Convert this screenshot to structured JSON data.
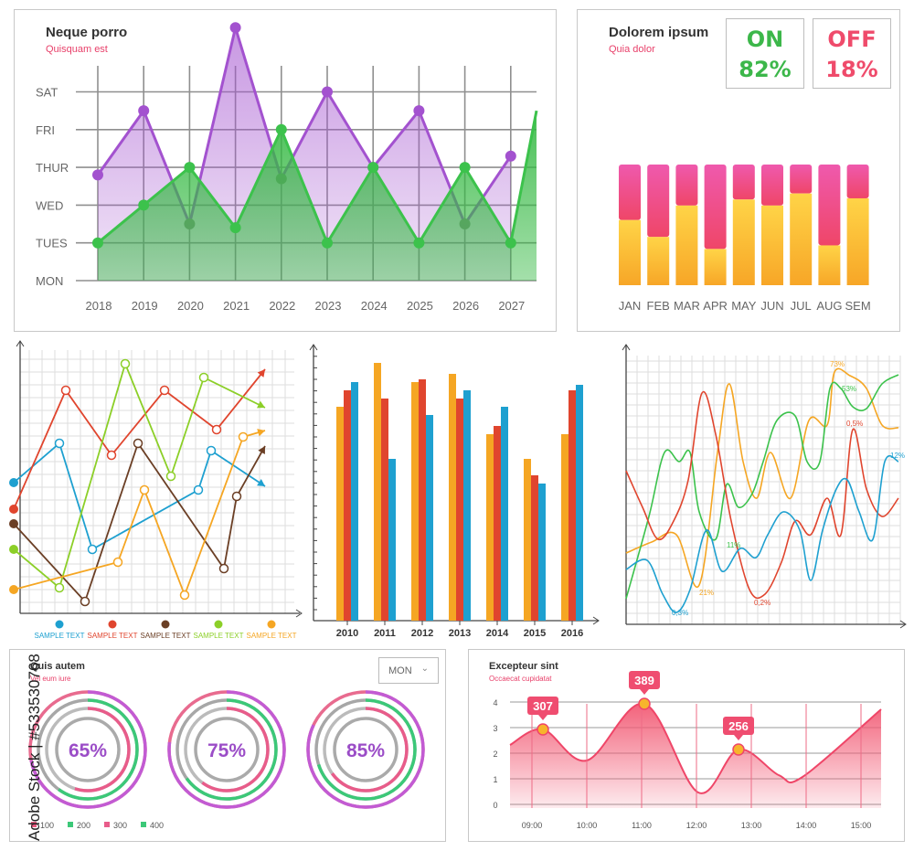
{
  "colors": {
    "purple": "#a352cf",
    "green": "#3cc24c",
    "pink": "#e8406a",
    "orange": "#f5a623",
    "red": "#e0452e",
    "blue": "#1ea0d0",
    "brown": "#6b3f25",
    "lime": "#8ccf28"
  },
  "panel1": {
    "title": "Neque porro",
    "subtitle": "Quisquam est"
  },
  "panel2": {
    "title": "Dolorem ipsum",
    "subtitle": "Quia dolor",
    "on_label": "ON",
    "on_value": "82%",
    "off_label": "OFF",
    "off_value": "18%"
  },
  "panel7": {
    "title": "Quis autem",
    "subtitle": "Vel eum iure",
    "dropdown": "MON"
  },
  "panel8": {
    "title": "Excepteur sint",
    "subtitle": "Occaecat cupidatat"
  },
  "watermark": "Adobe Stock | #533530768",
  "chart_data": [
    {
      "type": "area",
      "categories": [
        "2018",
        "2019",
        "2020",
        "2021",
        "2022",
        "2023",
        "2024",
        "2025",
        "2026",
        "2027"
      ],
      "y_categories": [
        "MON",
        "TUES",
        "WED",
        "THUR",
        "FRI",
        "SAT"
      ],
      "series": [
        {
          "color": "purple",
          "values": [
            2.8,
            4.5,
            1.5,
            6.7,
            2.7,
            5.0,
            3.0,
            4.5,
            1.5,
            3.3
          ]
        },
        {
          "color": "green",
          "values": [
            1.0,
            2.0,
            3.0,
            1.4,
            4.0,
            1.0,
            3.0,
            1.0,
            3.0,
            1.0
          ]
        }
      ]
    },
    {
      "type": "bar",
      "stacked": true,
      "categories": [
        "JAN",
        "FEB",
        "MAR",
        "APR",
        "MAY",
        "JUN",
        "JUL",
        "AUG",
        "SEM"
      ],
      "series": [
        {
          "color": "orange",
          "values": [
            54,
            40,
            66,
            30,
            71,
            66,
            76,
            33,
            72
          ]
        },
        {
          "color": "pink",
          "values": [
            46,
            60,
            34,
            70,
            29,
            34,
            24,
            67,
            28
          ]
        }
      ]
    },
    {
      "type": "line",
      "legend": [
        "SAMPLE TEXT",
        "SAMPLE TEXT",
        "SAMPLE TEXT",
        "SAMPLE TEXT",
        "SAMPLE TEXT"
      ],
      "series": [
        {
          "color": "blue",
          "values": [
            50,
            65,
            32,
            40,
            45,
            49,
            62,
            48
          ]
        },
        {
          "color": "red",
          "values": [
            38,
            82,
            60,
            82,
            75,
            60,
            80
          ]
        },
        {
          "color": "brown",
          "values": [
            41,
            20,
            5,
            65,
            35,
            20,
            48,
            62
          ]
        },
        {
          "color": "lime",
          "values": [
            31,
            10,
            92,
            43,
            92,
            78
          ]
        },
        {
          "color": "orange",
          "values": [
            10,
            16,
            29,
            49,
            8,
            57,
            66
          ]
        }
      ]
    },
    {
      "type": "bar",
      "categories": [
        "2010",
        "2011",
        "2012",
        "2013",
        "2014",
        "2015",
        "2016"
      ],
      "series": [
        {
          "color": "orange",
          "values": [
            78,
            94,
            87,
            90,
            68,
            59,
            68
          ]
        },
        {
          "color": "red",
          "values": [
            84,
            81,
            88,
            81,
            71,
            53,
            84
          ]
        },
        {
          "color": "blue",
          "values": [
            87,
            59,
            75,
            84,
            78,
            50,
            86
          ]
        }
      ]
    },
    {
      "type": "line",
      "annotations": [
        "73%",
        "53%",
        "0,5%",
        "12%",
        "11%",
        "21%",
        "0,2%",
        "0,3%"
      ],
      "series": [
        {
          "color": "orange"
        },
        {
          "color": "green"
        },
        {
          "color": "red"
        },
        {
          "color": "blue"
        }
      ]
    },
    {
      "type": "pie",
      "values": [
        "65%",
        "75%",
        "85%"
      ],
      "legend": [
        "100",
        "200",
        "300",
        "400"
      ]
    },
    {
      "type": "area",
      "x": [
        "09:00",
        "10:00",
        "11:00",
        "12:00",
        "13:00",
        "14:00",
        "15:00"
      ],
      "y_ticks": [
        "4",
        "3",
        "2",
        "1",
        "0"
      ],
      "ylim": [
        0,
        4
      ],
      "callouts": [
        "307",
        "389",
        "256"
      ]
    }
  ]
}
